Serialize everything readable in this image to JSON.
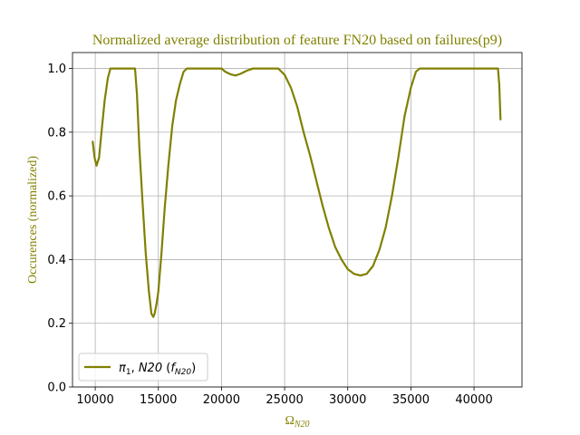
{
  "chart_data": {
    "type": "line",
    "title": "Normalized average distribution of feature FN20 based on failures(p9)",
    "xlabel": "Ω",
    "xlabel_sub": "N20",
    "ylabel": "Occurences (normalized)",
    "xlim": [
      8200,
      43800
    ],
    "ylim": [
      0.0,
      1.05
    ],
    "xticks": [
      10000,
      15000,
      20000,
      25000,
      30000,
      35000,
      40000
    ],
    "yticks": [
      0.0,
      0.2,
      0.4,
      0.6,
      0.8,
      1.0
    ],
    "xtick_labels": [
      "10000",
      "15000",
      "20000",
      "25000",
      "30000",
      "35000",
      "40000"
    ],
    "ytick_labels": [
      "0.0",
      "0.2",
      "0.4",
      "0.6",
      "0.8",
      "1.0"
    ],
    "grid": true,
    "legend_position": "lower-left",
    "colors": {
      "series": "#808000",
      "title": "#808000",
      "grid": "#b0b0b0"
    },
    "series": [
      {
        "legend": {
          "pi": "π",
          "pi_sub": "1",
          "sep": ", ",
          "n20": "N20",
          "open": " (",
          "f": "f",
          "f_sub": "N20",
          "close": ")"
        },
        "x": [
          9800,
          9950,
          10100,
          10300,
          10500,
          10750,
          11000,
          11200,
          11350,
          12000,
          12700,
          13150,
          13300,
          13500,
          13750,
          14000,
          14250,
          14450,
          14600,
          14700,
          14850,
          15000,
          15250,
          15500,
          15800,
          16100,
          16400,
          16700,
          17000,
          17250,
          17350,
          18000,
          19000,
          20000,
          20300,
          20700,
          21100,
          21500,
          22000,
          22500,
          22700,
          23500,
          24500,
          25000,
          25500,
          26000,
          26500,
          27000,
          27500,
          28000,
          28500,
          29000,
          29500,
          30000,
          30500,
          31000,
          31500,
          32000,
          32500,
          33000,
          33500,
          34000,
          34500,
          35000,
          35400,
          35700,
          35850,
          37000,
          39000,
          41000,
          41900,
          42000,
          42100
        ],
        "y": [
          0.77,
          0.72,
          0.695,
          0.72,
          0.8,
          0.9,
          0.97,
          1.0,
          1.0,
          1.0,
          1.0,
          1.0,
          0.92,
          0.75,
          0.58,
          0.42,
          0.3,
          0.23,
          0.22,
          0.23,
          0.26,
          0.3,
          0.42,
          0.56,
          0.7,
          0.82,
          0.9,
          0.95,
          0.99,
          1.0,
          1.0,
          1.0,
          1.0,
          1.0,
          0.99,
          0.982,
          0.978,
          0.983,
          0.993,
          1.0,
          1.0,
          1.0,
          1.0,
          0.98,
          0.94,
          0.88,
          0.8,
          0.73,
          0.65,
          0.57,
          0.5,
          0.44,
          0.4,
          0.37,
          0.355,
          0.35,
          0.355,
          0.38,
          0.43,
          0.5,
          0.6,
          0.72,
          0.85,
          0.94,
          0.99,
          1.0,
          1.0,
          1.0,
          1.0,
          1.0,
          1.0,
          0.95,
          0.84
        ]
      }
    ]
  }
}
